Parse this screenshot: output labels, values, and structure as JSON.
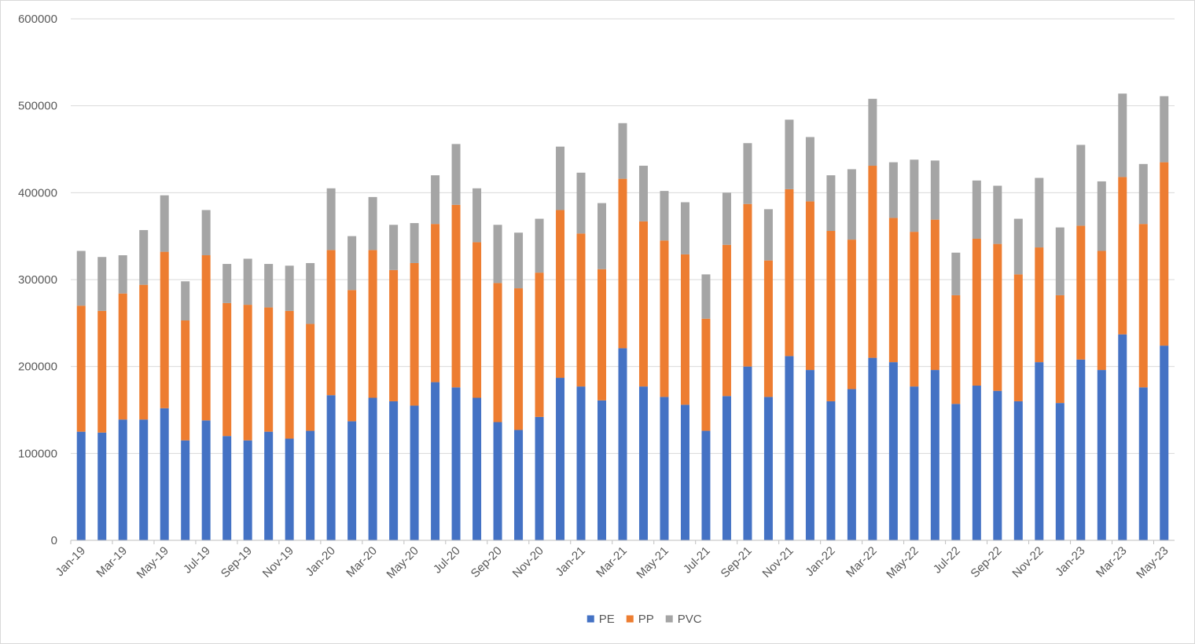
{
  "chart_data": {
    "type": "bar",
    "stacked": true,
    "title": "",
    "xlabel": "",
    "ylabel": "",
    "ylim": [
      0,
      600000
    ],
    "yticks": [
      0,
      100000,
      200000,
      300000,
      400000,
      500000,
      600000
    ],
    "grid": true,
    "legend_position": "bottom",
    "categories": [
      "Jan-19",
      "Feb-19",
      "Mar-19",
      "Apr-19",
      "May-19",
      "Jun-19",
      "Jul-19",
      "Aug-19",
      "Sep-19",
      "Oct-19",
      "Nov-19",
      "Dec-19",
      "Jan-20",
      "Feb-20",
      "Mar-20",
      "Apr-20",
      "May-20",
      "Jun-20",
      "Jul-20",
      "Aug-20",
      "Sep-20",
      "Oct-20",
      "Nov-20",
      "Dec-20",
      "Jan-21",
      "Feb-21",
      "Mar-21",
      "Apr-21",
      "May-21",
      "Jun-21",
      "Jul-21",
      "Aug-21",
      "Sep-21",
      "Oct-21",
      "Nov-21",
      "Dec-21",
      "Jan-22",
      "Feb-22",
      "Mar-22",
      "Apr-22",
      "May-22",
      "Jun-22",
      "Jul-22",
      "Aug-22",
      "Sep-22",
      "Oct-22",
      "Nov-22",
      "Dec-22",
      "Jan-23",
      "Feb-23",
      "Mar-23",
      "Apr-23",
      "May-23"
    ],
    "xtick_labels": [
      "Jan-19",
      "Mar-19",
      "May-19",
      "Jul-19",
      "Sep-19",
      "Nov-19",
      "Jan-20",
      "Mar-20",
      "May-20",
      "Jul-20",
      "Sep-20",
      "Nov-20",
      "Jan-21",
      "Mar-21",
      "May-21",
      "Jul-21",
      "Sep-21",
      "Nov-21",
      "Jan-22",
      "Mar-22",
      "May-22",
      "Jul-22",
      "Sep-22",
      "Nov-22",
      "Jan-23",
      "Mar-23",
      "May-23"
    ],
    "series": [
      {
        "name": "PE",
        "color": "#4472C4",
        "values": [
          125000,
          124000,
          139000,
          139000,
          152000,
          115000,
          138000,
          120000,
          115000,
          125000,
          117000,
          126000,
          167000,
          137000,
          164000,
          160000,
          155000,
          182000,
          176000,
          164000,
          136000,
          127000,
          142000,
          187000,
          177000,
          161000,
          221000,
          177000,
          165000,
          156000,
          126000,
          166000,
          200000,
          165000,
          212000,
          196000,
          160000,
          174000,
          210000,
          205000,
          177000,
          196000,
          157000,
          178000,
          172000,
          160000,
          205000,
          158000,
          208000,
          196000,
          237000,
          176000,
          224000
        ]
      },
      {
        "name": "PP",
        "color": "#ED7D31",
        "values": [
          145000,
          140000,
          145000,
          155000,
          180000,
          138000,
          190000,
          153000,
          156000,
          143000,
          147000,
          123000,
          167000,
          151000,
          170000,
          151000,
          164000,
          182000,
          210000,
          179000,
          160000,
          163000,
          166000,
          193000,
          176000,
          151000,
          195000,
          190000,
          180000,
          173000,
          129000,
          174000,
          187000,
          157000,
          192000,
          194000,
          196000,
          172000,
          221000,
          166000,
          178000,
          173000,
          125000,
          169000,
          169000,
          146000,
          132000,
          124000,
          154000,
          137000,
          181000,
          188000,
          211000
        ]
      },
      {
        "name": "PVC",
        "color": "#A5A5A5",
        "values": [
          63000,
          62000,
          44000,
          63000,
          65000,
          45000,
          52000,
          45000,
          53000,
          50000,
          52000,
          70000,
          71000,
          62000,
          61000,
          52000,
          46000,
          56000,
          70000,
          62000,
          67000,
          64000,
          62000,
          73000,
          70000,
          76000,
          64000,
          64000,
          57000,
          60000,
          51000,
          60000,
          70000,
          59000,
          80000,
          74000,
          64000,
          81000,
          77000,
          64000,
          83000,
          68000,
          49000,
          67000,
          67000,
          64000,
          80000,
          78000,
          93000,
          80000,
          96000,
          69000,
          76000
        ]
      }
    ]
  }
}
